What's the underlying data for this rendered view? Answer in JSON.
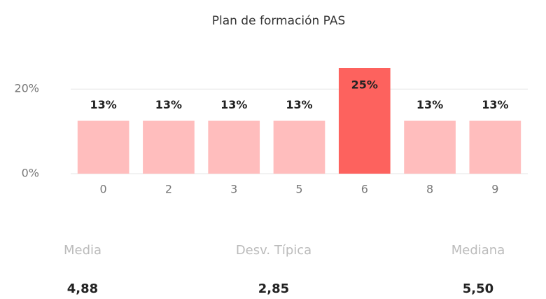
{
  "chart_data": {
    "type": "bar",
    "title": "Plan de formación PAS",
    "categories": [
      "0",
      "2",
      "3",
      "5",
      "6",
      "8",
      "9"
    ],
    "values": [
      12.5,
      12.5,
      12.5,
      12.5,
      25,
      12.5,
      12.5
    ],
    "value_labels": [
      "13%",
      "13%",
      "13%",
      "13%",
      "25%",
      "13%",
      "13%"
    ],
    "colors": [
      "#ffbdbd",
      "#ffbdbd",
      "#ffbdbd",
      "#ffbdbd",
      "#fd625e",
      "#ffbdbd",
      "#ffbdbd"
    ],
    "ylim": [
      0,
      25
    ],
    "yticks": [
      {
        "value": 0,
        "label": "0%"
      },
      {
        "value": 20,
        "label": "20%"
      }
    ],
    "grid": true
  },
  "stats": [
    {
      "label": "Media",
      "value": "4,88"
    },
    {
      "label": "Desv. Típica",
      "value": "2,85"
    },
    {
      "label": "Mediana",
      "value": "5,50"
    }
  ]
}
